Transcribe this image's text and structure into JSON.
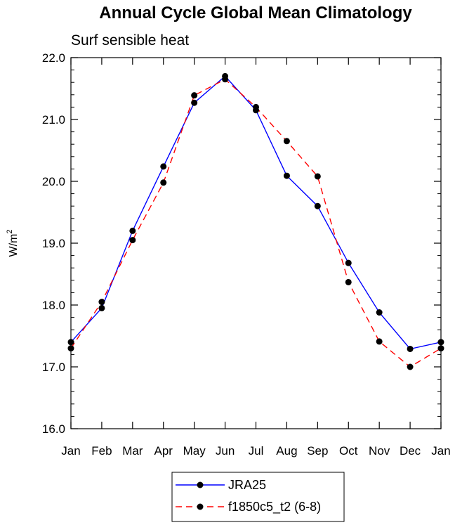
{
  "chart_data": {
    "type": "line",
    "title": "Annual Cycle Global Mean Climatology",
    "subtitle": "Surf sensible heat",
    "ylabel_base": "W/m",
    "ylabel_sup": "2",
    "xlabel": "",
    "categories": [
      "Jan",
      "Feb",
      "Mar",
      "Apr",
      "May",
      "Jun",
      "Jul",
      "Aug",
      "Sep",
      "Oct",
      "Nov",
      "Dec",
      "Jan"
    ],
    "ylim": [
      16.0,
      22.0
    ],
    "yticks": [
      "16.0",
      "17.0",
      "18.0",
      "19.0",
      "20.0",
      "21.0",
      "22.0"
    ],
    "yminor_step": 0.2,
    "series": [
      {
        "name": "JRA25",
        "color": "#0000ff",
        "dash": "solid",
        "values": [
          17.4,
          17.95,
          19.2,
          20.24,
          21.27,
          21.7,
          21.15,
          20.09,
          19.6,
          18.68,
          17.88,
          17.29,
          17.4
        ]
      },
      {
        "name": "f1850c5_t2 (6-8)",
        "color": "#ff0000",
        "dash": "dashed",
        "values": [
          17.3,
          18.05,
          19.05,
          19.98,
          21.39,
          21.65,
          21.2,
          20.65,
          20.08,
          18.37,
          17.41,
          17.0,
          17.3
        ]
      }
    ],
    "legend_position": "bottom-center",
    "grid": false
  }
}
